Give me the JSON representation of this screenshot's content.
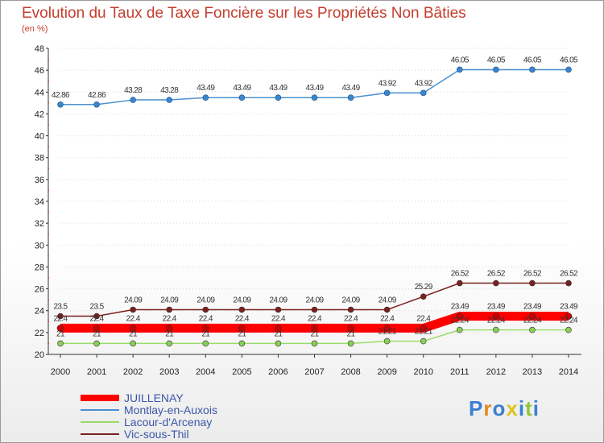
{
  "chart_data": {
    "type": "line",
    "title": "Evolution du Taux de Taxe Foncière sur les Propriétés Non Bâties",
    "subtitle": "(en %)",
    "xlabel": "",
    "ylabel": "",
    "ylim": [
      20,
      48
    ],
    "yticks": [
      "20",
      "22",
      "24",
      "26",
      "28",
      "30",
      "32",
      "34",
      "36",
      "38",
      "40",
      "42",
      "44",
      "46",
      "48"
    ],
    "categories": [
      "2000",
      "2001",
      "2002",
      "2003",
      "2004",
      "2005",
      "2006",
      "2007",
      "2008",
      "2009",
      "2010",
      "2011",
      "2012",
      "2013",
      "2014"
    ],
    "series": [
      {
        "name": "JUILLENAY",
        "color": "#ff0000",
        "values": [
          22.4,
          22.4,
          22.4,
          22.4,
          22.4,
          22.4,
          22.4,
          22.4,
          22.4,
          22.4,
          22.4,
          23.49,
          23.49,
          23.49,
          23.49
        ],
        "labels": [
          "22.4",
          "22.4",
          "22.4",
          "22.4",
          "22.4",
          "22.4",
          "22.4",
          "22.4",
          "22.4",
          "22.4",
          "22.4",
          "23.49",
          "23.49",
          "23.49",
          "23.49"
        ]
      },
      {
        "name": "Montlay-en-Auxois",
        "color": "#4a90d0",
        "values": [
          42.86,
          42.86,
          43.28,
          43.28,
          43.49,
          43.49,
          43.49,
          43.49,
          43.49,
          43.92,
          43.92,
          46.05,
          46.05,
          46.05,
          46.05
        ],
        "labels": [
          "42.86",
          "42.86",
          "43.28",
          "43.28",
          "43.49",
          "43.49",
          "43.49",
          "43.49",
          "43.49",
          "43.92",
          "43.92",
          "46.05",
          "46.05",
          "46.05",
          "46.05"
        ]
      },
      {
        "name": "Lacour-d'Arcenay",
        "color": "#99dd66",
        "values": [
          21,
          21,
          21,
          21,
          21,
          21,
          21,
          21,
          21,
          21.21,
          21.21,
          22.24,
          22.24,
          22.24,
          22.24
        ],
        "labels": [
          "21",
          "21",
          "21",
          "21",
          "21",
          "21",
          "21",
          "21",
          "21",
          "21.21",
          "21.21",
          "22.24",
          "22.24",
          "22.24",
          "22.24"
        ]
      },
      {
        "name": "Vic-sous-Thil",
        "color": "#7a1f1f",
        "values": [
          23.5,
          23.5,
          24.09,
          24.09,
          24.09,
          24.09,
          24.09,
          24.09,
          24.09,
          24.09,
          25.29,
          26.52,
          26.52,
          26.52,
          26.52
        ],
        "labels": [
          "23.5",
          "23.5",
          "24.09",
          "24.09",
          "24.09",
          "24.09",
          "24.09",
          "24.09",
          "24.09",
          "24.09",
          "25.29",
          "26.52",
          "26.52",
          "26.52",
          "26.52"
        ]
      }
    ]
  },
  "logo": {
    "text": "Proxiti"
  }
}
